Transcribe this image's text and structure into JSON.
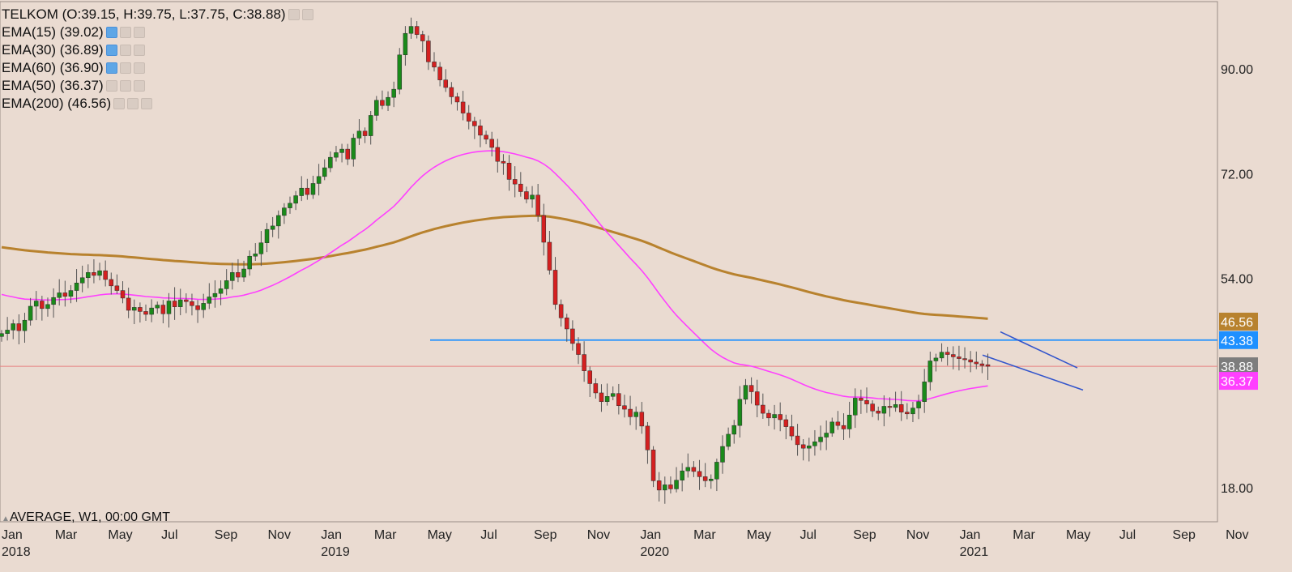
{
  "header": {
    "title": "TELKOM (O:39.15, H:39.75, L:37.75, C:38.88)",
    "indicators": [
      {
        "label": "EMA(15) (39.02)",
        "active": true
      },
      {
        "label": "EMA(30) (36.89)",
        "active": true
      },
      {
        "label": "EMA(60) (36.90)",
        "active": true
      },
      {
        "label": "EMA(50) (36.37)",
        "active": false
      },
      {
        "label": "EMA(200) (46.56)",
        "active": false
      }
    ]
  },
  "footer": {
    "label": "AVERAGE, W1, 00:00 GMT"
  },
  "colors": {
    "background": "#eadbd1",
    "up": "#1a8a1a",
    "down": "#d42020",
    "ema50": "#ff40ff",
    "ema200": "#b8822e",
    "resistance": "#1e90ff",
    "trendline": "#3355cc",
    "last_price_line": "#e88080"
  },
  "chart_data": {
    "type": "candlestick",
    "ylim": [
      11.5,
      103
    ],
    "y_ticks": [
      "90.00",
      "72.00",
      "54.00",
      "18.00"
    ],
    "x_labels": [
      {
        "m": "Jan",
        "y": "2018"
      },
      {
        "m": "Mar",
        "y": ""
      },
      {
        "m": "May",
        "y": ""
      },
      {
        "m": "Jul",
        "y": ""
      },
      {
        "m": "Sep",
        "y": ""
      },
      {
        "m": "Nov",
        "y": ""
      },
      {
        "m": "Jan",
        "y": "2019"
      },
      {
        "m": "Mar",
        "y": ""
      },
      {
        "m": "May",
        "y": ""
      },
      {
        "m": "Jul",
        "y": ""
      },
      {
        "m": "Sep",
        "y": ""
      },
      {
        "m": "Nov",
        "y": ""
      },
      {
        "m": "Jan",
        "y": "2020"
      },
      {
        "m": "Mar",
        "y": ""
      },
      {
        "m": "May",
        "y": ""
      },
      {
        "m": "Jul",
        "y": ""
      },
      {
        "m": "Sep",
        "y": ""
      },
      {
        "m": "Nov",
        "y": ""
      },
      {
        "m": "Jan",
        "y": "2021"
      },
      {
        "m": "Mar",
        "y": ""
      },
      {
        "m": "May",
        "y": ""
      },
      {
        "m": "Jul",
        "y": ""
      },
      {
        "m": "Sep",
        "y": ""
      },
      {
        "m": "Nov",
        "y": ""
      }
    ],
    "closes": [
      44.5,
      45.1,
      46.2,
      45.0,
      46.8,
      49.2,
      50.1,
      48.8,
      49.5,
      50.7,
      51.5,
      50.9,
      51.9,
      53.2,
      54.1,
      55.0,
      54.5,
      55.3,
      53.8,
      52.7,
      51.9,
      50.6,
      48.5,
      49.0,
      48.3,
      47.8,
      48.9,
      49.4,
      47.9,
      50.1,
      49.1,
      50.3,
      50.0,
      49.3,
      48.6,
      49.7,
      50.8,
      51.4,
      52.2,
      53.6,
      55.0,
      54.2,
      55.6,
      57.8,
      58.2,
      60.1,
      62.4,
      63.0,
      64.8,
      66.1,
      66.9,
      68.2,
      69.5,
      68.4,
      70.3,
      71.5,
      73.0,
      74.8,
      75.6,
      76.2,
      74.5,
      78.1,
      79.3,
      78.5,
      82.0,
      84.6,
      83.7,
      85.1,
      86.5,
      92.4,
      96.1,
      97.3,
      95.9,
      94.8,
      91.2,
      90.3,
      88.1,
      86.8,
      85.2,
      84.3,
      82.4,
      81.0,
      80.2,
      78.6,
      77.9,
      76.5,
      74.1,
      73.8,
      71.0,
      70.2,
      68.9,
      67.6,
      68.3,
      64.8,
      60.2,
      55.4,
      49.5,
      47.2,
      45.3,
      42.8,
      40.9,
      38.1,
      35.9,
      34.3,
      32.8,
      33.7,
      34.2,
      32.1,
      31.5,
      30.2,
      31.0,
      28.6,
      24.5,
      19.2,
      17.6,
      18.5,
      17.8,
      19.3,
      20.9,
      21.5,
      20.8,
      19.9,
      19.2,
      19.5,
      22.4,
      25.1,
      27.2,
      28.7,
      33.2,
      35.6,
      34.5,
      32.2,
      30.8,
      30.0,
      30.6,
      29.7,
      28.5,
      26.9,
      25.4,
      24.8,
      25.2,
      25.9,
      26.7,
      27.4,
      29.3,
      28.7,
      28.1,
      30.5,
      33.4,
      33.0,
      32.4,
      31.2,
      30.8,
      32.0,
      31.8,
      32.3,
      31.0,
      30.7,
      31.7,
      32.8,
      36.2,
      39.8,
      40.3,
      41.3,
      40.9,
      40.5,
      40.2,
      40.0,
      39.6,
      39.3,
      39.0,
      38.88
    ],
    "ema50_label": "36.37",
    "ema200_label": "46.56",
    "resistance": {
      "value": 43.38,
      "label": "43.38"
    },
    "last": {
      "value": 38.88,
      "label": "38.88"
    }
  }
}
